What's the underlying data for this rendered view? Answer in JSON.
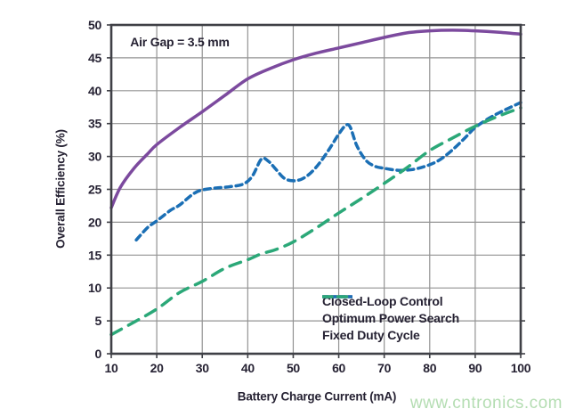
{
  "watermark": {
    "text": "www.cntronics.com",
    "color": "#b4ddb2"
  },
  "colors": {
    "frame": "#3f4046",
    "grid": "#939393",
    "text": "#262233",
    "background": "#ffffff"
  },
  "chart_data": {
    "type": "line",
    "title": "",
    "annotation": "Air Gap = 3.5 mm",
    "xlabel": "Battery Charge Current (mA)",
    "ylabel": "Overall Efficiency (%)",
    "xlim": [
      10,
      100
    ],
    "ylim": [
      0,
      50
    ],
    "x_ticks": [
      10,
      20,
      30,
      40,
      50,
      60,
      70,
      80,
      90,
      100
    ],
    "y_ticks": [
      0,
      5,
      10,
      15,
      20,
      25,
      30,
      35,
      40,
      45,
      50
    ],
    "grid": true,
    "legend_position": "inside-bottom",
    "series": [
      {
        "name": "Closed-Loop Control",
        "color": "#7c4a9e",
        "style": "solid",
        "points": [
          [
            10,
            22.2
          ],
          [
            12,
            25.3
          ],
          [
            15,
            28.2
          ],
          [
            18,
            30.4
          ],
          [
            20,
            31.8
          ],
          [
            25,
            34.4
          ],
          [
            30,
            36.8
          ],
          [
            35,
            39.3
          ],
          [
            40,
            41.8
          ],
          [
            45,
            43.4
          ],
          [
            50,
            44.7
          ],
          [
            55,
            45.7
          ],
          [
            60,
            46.5
          ],
          [
            65,
            47.3
          ],
          [
            70,
            48.1
          ],
          [
            75,
            48.8
          ],
          [
            80,
            49.1
          ],
          [
            85,
            49.2
          ],
          [
            90,
            49.1
          ],
          [
            95,
            48.9
          ],
          [
            100,
            48.6
          ]
        ]
      },
      {
        "name": "Optimum Power Search",
        "color": "#1b6fb5",
        "style": "short-dash",
        "points": [
          [
            15.5,
            17.3
          ],
          [
            18,
            19.2
          ],
          [
            20,
            20.2
          ],
          [
            23,
            21.8
          ],
          [
            25,
            22.6
          ],
          [
            28,
            24.3
          ],
          [
            30,
            24.9
          ],
          [
            33,
            25.2
          ],
          [
            36,
            25.4
          ],
          [
            39,
            25.8
          ],
          [
            41,
            27.0
          ],
          [
            43,
            29.6
          ],
          [
            44.5,
            29.3
          ],
          [
            46,
            28.2
          ],
          [
            48,
            26.7
          ],
          [
            50,
            26.3
          ],
          [
            52,
            26.6
          ],
          [
            54,
            27.6
          ],
          [
            56,
            29.2
          ],
          [
            58,
            31.2
          ],
          [
            60,
            33.4
          ],
          [
            61.5,
            34.7
          ],
          [
            62.5,
            34.5
          ],
          [
            64,
            31.6
          ],
          [
            66,
            29.4
          ],
          [
            68,
            28.5
          ],
          [
            70,
            28.2
          ],
          [
            73,
            27.9
          ],
          [
            76,
            28.0
          ],
          [
            79,
            28.5
          ],
          [
            82,
            29.4
          ],
          [
            85,
            31.0
          ],
          [
            88,
            33.0
          ],
          [
            90,
            34.4
          ],
          [
            93,
            35.8
          ],
          [
            96,
            36.9
          ],
          [
            100,
            38.2
          ]
        ]
      },
      {
        "name": "Fixed Duty Cycle",
        "color": "#2ba878",
        "style": "long-dash",
        "points": [
          [
            10,
            2.9
          ],
          [
            15,
            4.8
          ],
          [
            20,
            6.8
          ],
          [
            25,
            9.3
          ],
          [
            30,
            11.0
          ],
          [
            35,
            13.0
          ],
          [
            40,
            14.3
          ],
          [
            43,
            15.2
          ],
          [
            46,
            15.8
          ],
          [
            50,
            17.0
          ],
          [
            55,
            19.1
          ],
          [
            60,
            21.4
          ],
          [
            65,
            23.6
          ],
          [
            70,
            25.9
          ],
          [
            75,
            28.3
          ],
          [
            80,
            30.9
          ],
          [
            85,
            32.8
          ],
          [
            90,
            34.6
          ],
          [
            95,
            36.1
          ],
          [
            100,
            37.4
          ]
        ]
      }
    ]
  }
}
